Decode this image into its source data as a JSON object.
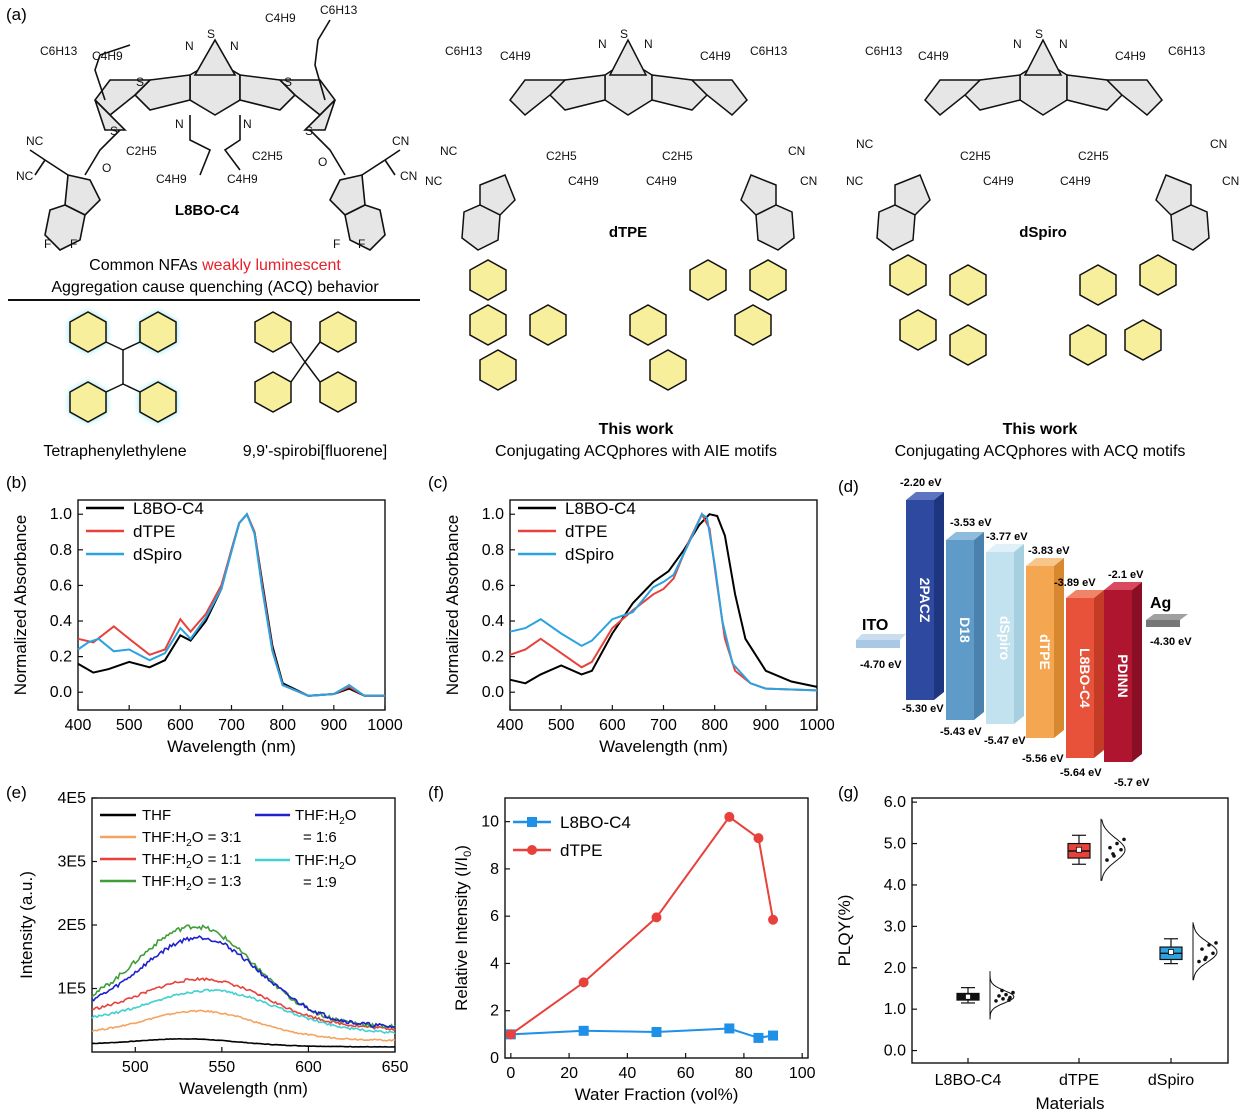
{
  "colors": {
    "black": "#000000",
    "red": "#e8413c",
    "blue": "#2aa3e0",
    "sq_blue": "#1e90e8",
    "green": "#3f9e3a",
    "orange": "#f4a460",
    "navy": "#1f1fd0",
    "cyan": "#40d0d0"
  },
  "panel_a": {
    "label": "(a)",
    "mol1": {
      "name": "L8BO-C4",
      "caption1_black": "Common NFAs ",
      "caption1_red": "weakly luminescent",
      "caption2": "Aggregation cause quenching (ACQ) behavior"
    },
    "mol2": {
      "name": "dTPE",
      "work": "This work",
      "desc": "Conjugating ACQphores with AIE motifs"
    },
    "mol3": {
      "name": "dSpiro",
      "work": "This work",
      "desc": "Conjugating ACQphores with ACQ motifs"
    },
    "motif1": "Tetraphenylethylene",
    "motif2": "9,9'-spirobi[fluorene]",
    "atoms": {
      "S": "S",
      "N": "N",
      "C6H13": "C6H13",
      "C4H9": "C4H9",
      "C2H5": "C2H5",
      "NC": "NC",
      "CN": "CN",
      "O": "O",
      "F": "F"
    }
  },
  "chart_data": [
    {
      "panel": "(b)",
      "type": "line",
      "xlabel": "Wavelength (nm)",
      "ylabel": "Normalized Absorbance",
      "xlim": [
        400,
        1000
      ],
      "ylim": [
        -0.1,
        1.08
      ],
      "xticks": [
        "400",
        "500",
        "600",
        "700",
        "800",
        "900",
        "1000"
      ],
      "yticks": [
        "0.0",
        "0.2",
        "0.4",
        "0.6",
        "0.8",
        "1.0"
      ],
      "series": [
        {
          "name": "L8BO-C4",
          "color": "#000000",
          "x": [
            400,
            430,
            460,
            500,
            540,
            570,
            600,
            620,
            650,
            680,
            700,
            715,
            730,
            745,
            760,
            780,
            800,
            850,
            900,
            930,
            960,
            1000
          ],
          "y": [
            0.16,
            0.11,
            0.13,
            0.17,
            0.14,
            0.18,
            0.32,
            0.29,
            0.4,
            0.58,
            0.8,
            0.95,
            1.0,
            0.9,
            0.62,
            0.26,
            0.05,
            -0.02,
            -0.01,
            0.02,
            -0.02,
            -0.02
          ]
        },
        {
          "name": "dTPE",
          "color": "#e8413c",
          "x": [
            400,
            430,
            470,
            500,
            540,
            570,
            600,
            620,
            650,
            680,
            700,
            715,
            730,
            745,
            760,
            780,
            800,
            850,
            900,
            930,
            960,
            1000
          ],
          "y": [
            0.3,
            0.28,
            0.37,
            0.3,
            0.21,
            0.24,
            0.41,
            0.34,
            0.44,
            0.6,
            0.8,
            0.95,
            1.0,
            0.9,
            0.6,
            0.24,
            0.04,
            -0.02,
            -0.01,
            0.03,
            -0.02,
            -0.02
          ]
        },
        {
          "name": "dSpiro",
          "color": "#2aa3e0",
          "x": [
            400,
            420,
            440,
            470,
            500,
            540,
            570,
            600,
            620,
            650,
            680,
            700,
            715,
            730,
            745,
            760,
            780,
            800,
            850,
            900,
            930,
            960,
            1000
          ],
          "y": [
            0.24,
            0.28,
            0.3,
            0.23,
            0.24,
            0.18,
            0.22,
            0.36,
            0.3,
            0.42,
            0.58,
            0.79,
            0.95,
            1.0,
            0.89,
            0.58,
            0.23,
            0.04,
            -0.02,
            -0.01,
            0.04,
            -0.02,
            -0.02
          ]
        }
      ]
    },
    {
      "panel": "(c)",
      "type": "line",
      "xlabel": "Wavelength (nm)",
      "ylabel": "Normalized Absorbance",
      "xlim": [
        400,
        1000
      ],
      "ylim": [
        -0.1,
        1.08
      ],
      "xticks": [
        "400",
        "500",
        "600",
        "700",
        "800",
        "900",
        "1000"
      ],
      "yticks": [
        "0.0",
        "0.2",
        "0.4",
        "0.6",
        "0.8",
        "1.0"
      ],
      "series": [
        {
          "name": "L8BO-C4",
          "color": "#000000",
          "x": [
            400,
            430,
            460,
            500,
            540,
            560,
            600,
            640,
            680,
            710,
            740,
            770,
            790,
            805,
            820,
            840,
            860,
            900,
            950,
            1000
          ],
          "y": [
            0.07,
            0.05,
            0.1,
            0.15,
            0.1,
            0.12,
            0.33,
            0.5,
            0.62,
            0.68,
            0.8,
            0.94,
            1.0,
            0.99,
            0.88,
            0.55,
            0.3,
            0.12,
            0.06,
            0.03
          ]
        },
        {
          "name": "dTPE",
          "color": "#e8413c",
          "x": [
            400,
            430,
            460,
            500,
            540,
            560,
            600,
            640,
            680,
            700,
            720,
            750,
            775,
            790,
            805,
            820,
            840,
            870,
            900,
            1000
          ],
          "y": [
            0.21,
            0.24,
            0.3,
            0.22,
            0.14,
            0.17,
            0.36,
            0.46,
            0.55,
            0.58,
            0.64,
            0.85,
            1.0,
            0.92,
            0.6,
            0.3,
            0.12,
            0.05,
            0.02,
            0.01
          ]
        },
        {
          "name": "dSpiro",
          "color": "#2aa3e0",
          "x": [
            400,
            430,
            460,
            500,
            540,
            560,
            600,
            640,
            680,
            700,
            720,
            750,
            775,
            785,
            800,
            815,
            835,
            870,
            900,
            1000
          ],
          "y": [
            0.34,
            0.36,
            0.41,
            0.33,
            0.26,
            0.29,
            0.41,
            0.45,
            0.59,
            0.62,
            0.66,
            0.84,
            1.0,
            0.98,
            0.72,
            0.4,
            0.16,
            0.05,
            0.02,
            0.01
          ]
        }
      ]
    },
    {
      "panel": "(e)",
      "type": "line",
      "xlabel": "Wavelength (nm)",
      "ylabel": "Intensity (a.u.)",
      "xlim": [
        475,
        650
      ],
      "ylim": [
        0,
        400000
      ],
      "xticks": [
        "500",
        "550",
        "600",
        "650"
      ],
      "yticks": [
        "1E5",
        "2E5",
        "3E5",
        "4E5"
      ],
      "legend": [
        {
          "name": "THF",
          "color": "#000000"
        },
        {
          "name": "THF:H2O = 3:1",
          "color": "#f4a460"
        },
        {
          "name": "THF:H2O = 1:1",
          "color": "#e8413c"
        },
        {
          "name": "THF:H2O = 1:3",
          "color": "#3f9e3a"
        },
        {
          "name": "THF:H2O = 1:6",
          "color": "#1f1fd0"
        },
        {
          "name": "THF:H2O = 1:9",
          "color": "#40d0d0"
        }
      ],
      "legend_text": {
        "a": "THF",
        "b": "THF:H",
        "c": "O = 3:1",
        "d": "O = 1:1",
        "e": "O = 1:3",
        "f": "O",
        "g": "= 1:6",
        "h": "= 1:9",
        "sub": "2"
      },
      "series": [
        {
          "name": "THF",
          "color": "#000000",
          "peak": 22000,
          "base": 12000,
          "center": 530,
          "width": 40
        },
        {
          "name": "THF:H2O = 3:1",
          "color": "#f4a460",
          "peak": 68000,
          "base": 28000,
          "center": 538,
          "width": 45
        },
        {
          "name": "THF:H2O = 1:1",
          "color": "#e8413c",
          "peak": 122000,
          "base": 55000,
          "center": 540,
          "width": 50
        },
        {
          "name": "THF:H2O = 1:3",
          "color": "#3f9e3a",
          "peak": 205000,
          "base": 60000,
          "center": 535,
          "width": 48
        },
        {
          "name": "THF:H2O = 1:6",
          "color": "#1f1fd0",
          "peak": 188000,
          "base": 60000,
          "center": 538,
          "width": 48
        },
        {
          "name": "THF:H2O = 1:9",
          "color": "#40d0d0",
          "peak": 103000,
          "base": 45000,
          "center": 545,
          "width": 52
        }
      ]
    },
    {
      "panel": "(f)",
      "type": "line",
      "xlabel": "Water Fraction (vol%)",
      "ylabel": "Relative Intensity (I/I0)",
      "ylabel_parts": {
        "main": "Relative Intensity (I/I",
        "sub": "0",
        "end": ")"
      },
      "xlim": [
        -2,
        102
      ],
      "ylim": [
        0,
        11
      ],
      "xticks": [
        "0",
        "20",
        "40",
        "60",
        "80",
        "100"
      ],
      "yticks": [
        "0",
        "2",
        "4",
        "6",
        "8",
        "10"
      ],
      "series": [
        {
          "name": "L8BO-C4",
          "color": "#1e90e8",
          "marker": "square",
          "x": [
            0,
            25,
            50,
            75,
            85,
            90
          ],
          "y": [
            1.0,
            1.15,
            1.1,
            1.25,
            0.85,
            0.95
          ]
        },
        {
          "name": "dTPE",
          "color": "#e8413c",
          "marker": "circle",
          "x": [
            0,
            25,
            50,
            75,
            85,
            90
          ],
          "y": [
            1.0,
            3.2,
            5.95,
            10.2,
            9.3,
            5.85
          ]
        }
      ]
    },
    {
      "panel": "(g)",
      "type": "box",
      "xlabel": "Materials",
      "ylabel": "PLQY(%)",
      "ylim": [
        -0.3,
        6.1
      ],
      "yticks": [
        "0.0",
        "1.0",
        "2.0",
        "3.0",
        "4.0",
        "5.0",
        "6.0"
      ],
      "categories": [
        "L8BO-C4",
        "dTPE",
        "dSpiro"
      ],
      "boxes": [
        {
          "name": "L8BO-C4",
          "color": "#111111",
          "min": 1.15,
          "q1": 1.22,
          "median": 1.3,
          "mean": 1.3,
          "q3": 1.38,
          "max": 1.52,
          "points": [
            1.2,
            1.25,
            1.28,
            1.32,
            1.35,
            1.4,
            1.45,
            1.22
          ]
        },
        {
          "name": "dTPE",
          "color": "#e8413c",
          "min": 4.5,
          "q1": 4.65,
          "median": 4.82,
          "mean": 4.85,
          "q3": 5.0,
          "max": 5.2,
          "points": [
            4.6,
            4.7,
            4.85,
            4.9,
            5.0,
            5.1,
            4.75
          ]
        },
        {
          "name": "dSpiro",
          "color": "#2aa3e0",
          "min": 2.1,
          "q1": 2.2,
          "median": 2.35,
          "mean": 2.38,
          "q3": 2.5,
          "max": 2.7,
          "points": [
            2.15,
            2.25,
            2.35,
            2.45,
            2.55,
            2.6,
            2.2
          ]
        }
      ]
    }
  ],
  "panel_d": {
    "label": "(d)",
    "levels": [
      {
        "name": "ITO",
        "lumo": "-4.70 eV",
        "color": "#a9c8e6"
      },
      {
        "name": "2PACZ",
        "lumo": "-2.20 eV",
        "homo": "-5.30 eV",
        "color": "#2d4aa0"
      },
      {
        "name": "D18",
        "lumo": "-3.53 eV",
        "homo": "-5.43 eV",
        "color": "#5f9bc8"
      },
      {
        "name": "dSpiro",
        "lumo": "-3.77 eV",
        "homo": "-5.47 eV",
        "color": "#c3e2ef"
      },
      {
        "name": "dTPE",
        "lumo": "-3.83 eV",
        "homo": "-5.56 eV",
        "color": "#f4a750"
      },
      {
        "name": "L8BO-C4",
        "lumo": "-3.89 eV",
        "homo": "-5.64 eV",
        "color": "#e8523a"
      },
      {
        "name": "PDINN",
        "lumo": "-2.1 eV",
        "homo": "-5.7 eV",
        "color": "#b01530"
      },
      {
        "name": "Ag",
        "lumo": "-4.30 eV",
        "color": "#777777"
      }
    ]
  }
}
